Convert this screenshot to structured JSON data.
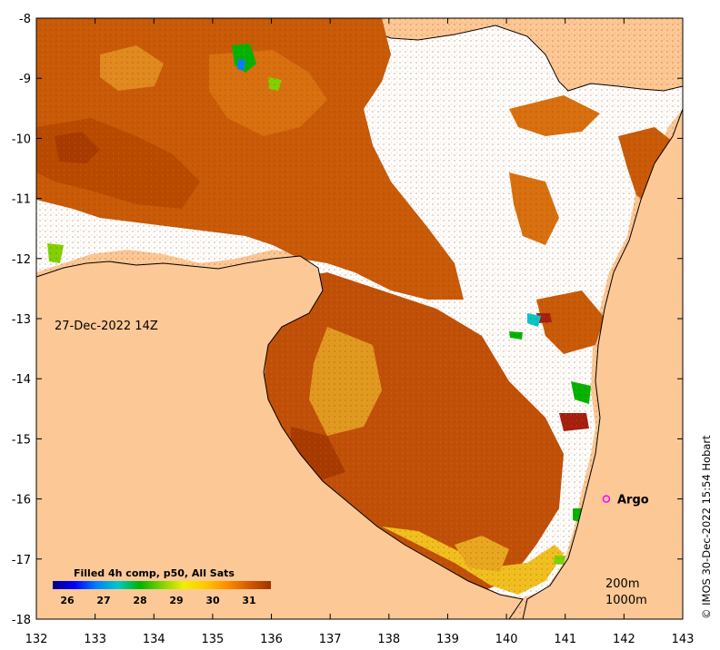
{
  "map": {
    "date_label": "27-Dec-2022 14Z",
    "credit": "© IMOS 30-Dec-2022 15:54 Hobart",
    "depth_contours": [
      "200m",
      "1000m"
    ],
    "land_color": "#fcc896",
    "no_data_color": "#ffffff",
    "argo": {
      "label": "Argo",
      "lon": 141.7,
      "lat": -16.0,
      "marker_color": "#ff00ff"
    }
  },
  "axes": {
    "x_ticks": [
      "132",
      "133",
      "134",
      "135",
      "136",
      "137",
      "138",
      "139",
      "140",
      "141",
      "142",
      "143"
    ],
    "y_ticks": [
      "-8",
      "-9",
      "-10",
      "-11",
      "-12",
      "-13",
      "-14",
      "-15",
      "-16",
      "-17",
      "-18"
    ],
    "lon_range": [
      132,
      143
    ],
    "lat_range": [
      -18,
      -8
    ]
  },
  "colorbar": {
    "title": "Filled 4h comp, p50, All Sats",
    "ticks": [
      "26",
      "27",
      "28",
      "29",
      "30",
      "31"
    ],
    "range": [
      25.6,
      31.6
    ],
    "colors": [
      "#00007f",
      "#0000ff",
      "#0080ff",
      "#00c8c8",
      "#00b400",
      "#7fd200",
      "#f0f000",
      "#ffc800",
      "#ff8c00",
      "#d25a00",
      "#a03200"
    ]
  }
}
